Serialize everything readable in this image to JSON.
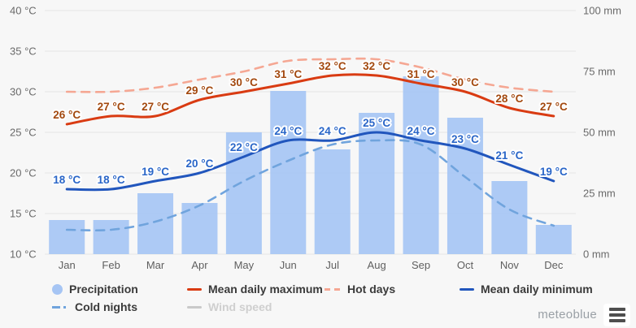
{
  "branding": {
    "logo_text": "meteoblue"
  },
  "colors": {
    "background": "#f7f7f7",
    "grid": "#e6e6e6",
    "axis_text": "#6a6a6a",
    "month_text": "#5f5f5f",
    "bar": "#a6c5f4",
    "max_line": "#d93b12",
    "max_label": "#a3490f",
    "min_line": "#2156bd",
    "min_label": "#2a66c8",
    "hot_dashed": "#f5a793",
    "cold_dashed": "#70a4dd",
    "disabled": "#cfcfcf",
    "logo_text": "#9aa0a6"
  },
  "chart_data": {
    "type": "combo",
    "categories": [
      "Jan",
      "Feb",
      "Mar",
      "Apr",
      "May",
      "Jun",
      "Jul",
      "Aug",
      "Sep",
      "Oct",
      "Nov",
      "Dec"
    ],
    "left_axis": {
      "unit": "°C",
      "min": 10,
      "max": 40,
      "tick_values": [
        40,
        35,
        30,
        25,
        20,
        15,
        10
      ],
      "tick_labels": [
        "40 °C",
        "35 °C",
        "30 °C",
        "25 °C",
        "20 °C",
        "15 °C",
        "10 °C"
      ]
    },
    "right_axis": {
      "unit": "mm",
      "min": 0,
      "max": 100,
      "tick_values": [
        100,
        75,
        50,
        25,
        0
      ],
      "tick_labels": [
        "100 mm",
        "75 mm",
        "50 mm",
        "25 mm",
        "0 mm"
      ]
    },
    "point_label_suffix": " °C",
    "series": [
      {
        "name": "Precipitation",
        "type": "bar",
        "axis": "right",
        "color": "#a6c5f4",
        "hidden": false,
        "values": [
          14,
          14,
          25,
          21,
          50,
          67,
          43,
          58,
          73,
          56,
          30,
          12
        ]
      },
      {
        "name": "Hot days",
        "type": "line",
        "style": "dashed",
        "axis": "left",
        "color": "#f5a793",
        "hidden": false,
        "values": [
          30,
          30,
          30.5,
          31.5,
          32.5,
          33.8,
          34,
          34,
          33,
          31.5,
          30.5,
          30
        ]
      },
      {
        "name": "Cold nights",
        "type": "line",
        "style": "dashed",
        "axis": "left",
        "color": "#70a4dd",
        "hidden": false,
        "values": [
          13,
          13,
          14,
          16,
          19,
          21.5,
          23.5,
          24,
          23.5,
          19.5,
          15.5,
          13.5
        ]
      },
      {
        "name": "Mean daily maximum",
        "type": "line",
        "style": "solid",
        "axis": "left",
        "color": "#d93b12",
        "label_color": "#a3490f",
        "point_labels": true,
        "hidden": false,
        "values": [
          26,
          27,
          27,
          29,
          30,
          31,
          32,
          32,
          31,
          30,
          28,
          27
        ]
      },
      {
        "name": "Mean daily minimum",
        "type": "line",
        "style": "solid",
        "axis": "left",
        "color": "#2156bd",
        "label_color": "#2a66c8",
        "point_labels": true,
        "hidden": false,
        "values": [
          18,
          18,
          19,
          20,
          22,
          24,
          24,
          25,
          24,
          23,
          21,
          19
        ]
      },
      {
        "name": "Wind speed",
        "type": "line",
        "style": "solid",
        "axis": "left",
        "color": "#c9c9c9",
        "hidden": true,
        "values": []
      }
    ]
  },
  "legend": {
    "items": [
      {
        "label": "Precipitation",
        "marker": "circle",
        "color": "#a6c5f4",
        "disabled": false
      },
      {
        "label": "Mean daily maximum",
        "marker": "line",
        "color": "#d93b12",
        "disabled": false
      },
      {
        "label": "Hot days",
        "marker": "dashed",
        "color": "#f5a793",
        "disabled": false
      },
      {
        "label": "Mean daily minimum",
        "marker": "line",
        "color": "#2156bd",
        "disabled": false
      },
      {
        "label": "Cold nights",
        "marker": "dashdot",
        "color": "#70a4dd",
        "disabled": false
      },
      {
        "label": "Wind speed",
        "marker": "line",
        "color": "#c9c9c9",
        "disabled": true
      }
    ]
  }
}
